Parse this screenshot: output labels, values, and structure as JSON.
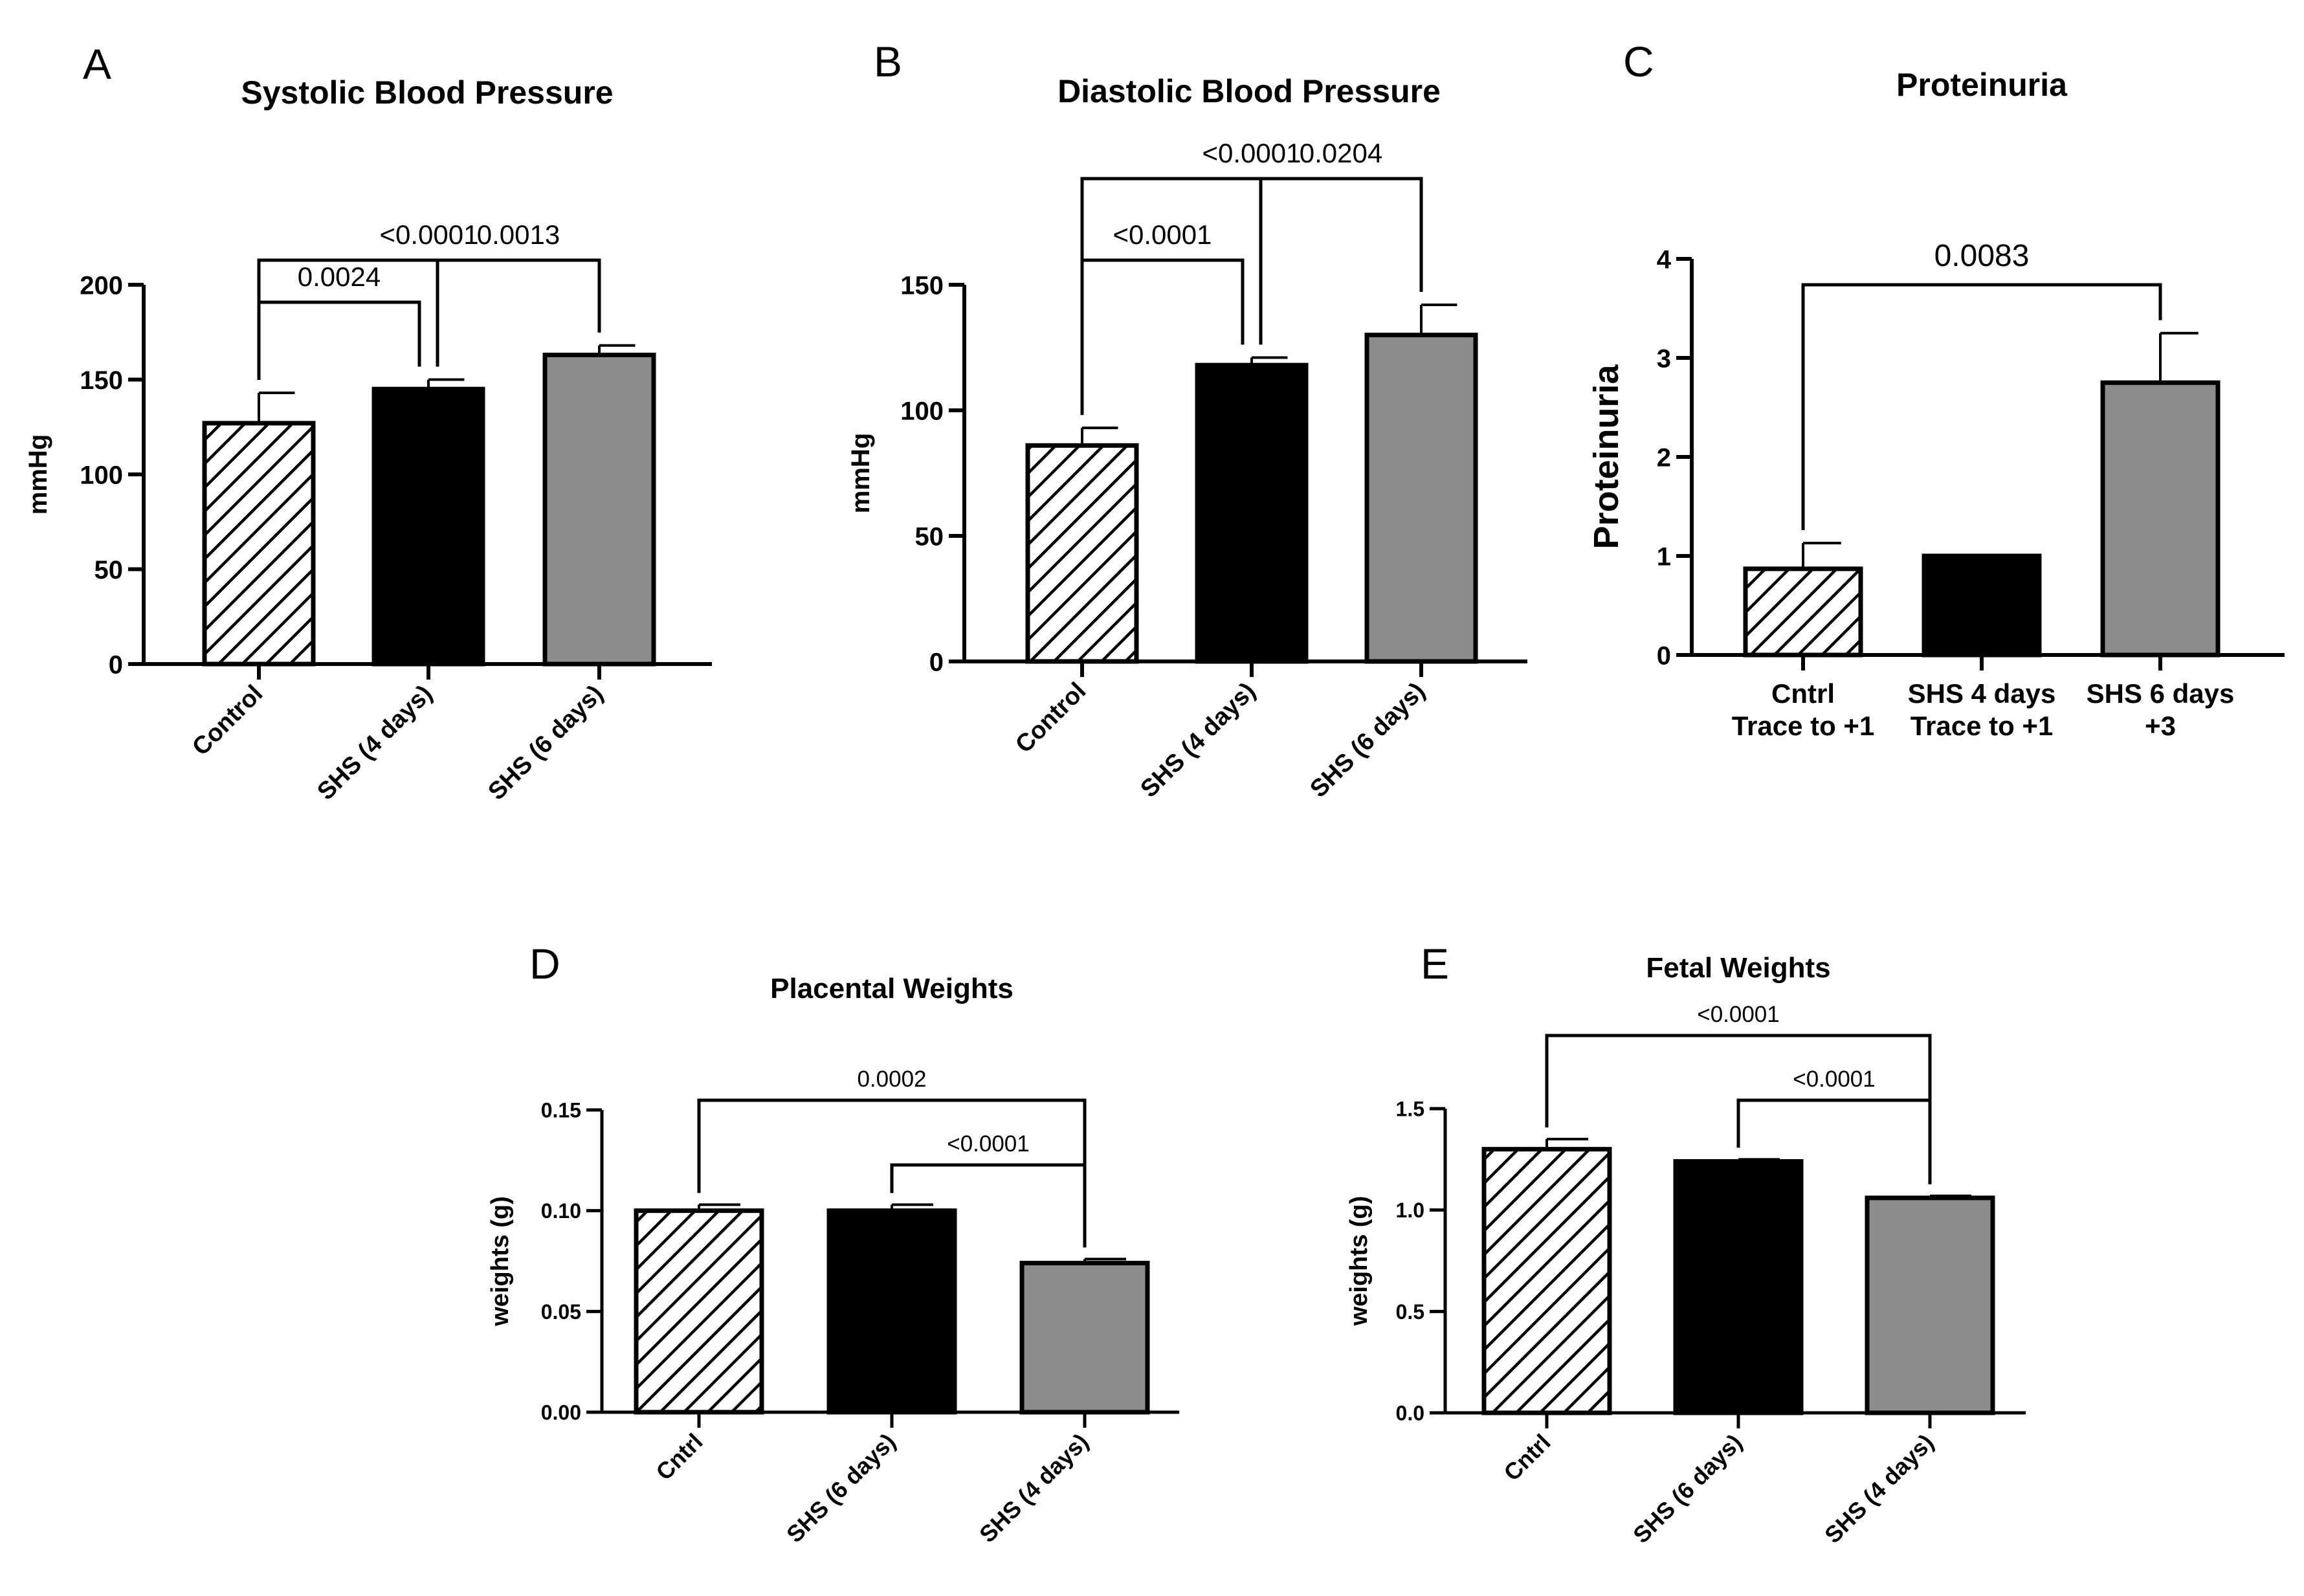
{
  "figure": {
    "colors": {
      "black": "#000000",
      "gray": "#8c8c8c",
      "white": "#ffffff"
    },
    "charts": [
      {
        "id": "A",
        "panel": "A"
      },
      {
        "id": "B",
        "panel": "B"
      },
      {
        "id": "C",
        "panel": "C"
      },
      {
        "id": "D",
        "panel": "D"
      },
      {
        "id": "E",
        "panel": "E"
      }
    ]
  },
  "chart_data": [
    {
      "type": "bar",
      "panel": "A",
      "title": "Systolic Blood Pressure",
      "xlabel": "",
      "ylabel": "mmHg",
      "ylim": [
        0,
        200
      ],
      "yticks": [
        0,
        50,
        100,
        150,
        200
      ],
      "ytick_labels": [
        "0",
        "50",
        "100",
        "150",
        "200"
      ],
      "categories": [
        "Control",
        "SHS (4 days)",
        "SHS (6 days)"
      ],
      "values": [
        127,
        145,
        163
      ],
      "errors": [
        16,
        5,
        5
      ],
      "fills": [
        "hatch",
        "black",
        "gray"
      ],
      "comparisons": [
        {
          "from": 0,
          "to": 1,
          "label": "0.0024"
        },
        {
          "from": 1,
          "to": 2,
          "label": "0.0013"
        },
        {
          "from": 0,
          "to": 2,
          "label": "<0.0001"
        }
      ]
    },
    {
      "type": "bar",
      "panel": "B",
      "title": "Diastolic Blood Pressure",
      "xlabel": "",
      "ylabel": "mmHg",
      "ylim": [
        0,
        150
      ],
      "yticks": [
        0,
        50,
        100,
        150
      ],
      "ytick_labels": [
        "0",
        "50",
        "100",
        "150"
      ],
      "categories": [
        "Control",
        "SHS (4 days)",
        "SHS (6 days)"
      ],
      "values": [
        86,
        118,
        130
      ],
      "errors": [
        7,
        3,
        12
      ],
      "fills": [
        "hatch",
        "black",
        "gray"
      ],
      "comparisons": [
        {
          "from": 0,
          "to": 1,
          "label": "<0.0001"
        },
        {
          "from": 1,
          "to": 2,
          "label": "0.0204"
        },
        {
          "from": 0,
          "to": 2,
          "label": "<0.0001"
        }
      ]
    },
    {
      "type": "bar",
      "panel": "C",
      "title": "Proteinuria",
      "xlabel": "",
      "ylabel": "Proteinuria",
      "ylim": [
        0,
        4
      ],
      "yticks": [
        0,
        1,
        2,
        3,
        4
      ],
      "ytick_labels": [
        "0",
        "1",
        "2",
        "3",
        "4"
      ],
      "categories": [
        "Cntrl\nTrace to +1",
        "SHS 4 days\nTrace to +1",
        "SHS 6 days\n+3"
      ],
      "values": [
        0.87,
        1.0,
        2.75
      ],
      "errors": [
        0.26,
        0,
        0.5
      ],
      "fills": [
        "hatch",
        "black",
        "gray"
      ],
      "comparisons": [
        {
          "from": 0,
          "to": 2,
          "label": "0.0083"
        }
      ]
    },
    {
      "type": "bar",
      "panel": "D",
      "title": "Placental Weights",
      "xlabel": "",
      "ylabel": "weights (g)",
      "ylim": [
        0,
        0.15
      ],
      "yticks": [
        0,
        0.05,
        0.1,
        0.15
      ],
      "ytick_labels": [
        "0.00",
        "0.05",
        "0.10",
        "0.15"
      ],
      "categories": [
        "Cntrl",
        "SHS (6 days)",
        "SHS (4 days)"
      ],
      "values": [
        0.1,
        0.1,
        0.074
      ],
      "errors": [
        0.003,
        0.003,
        0.002
      ],
      "fills": [
        "hatch",
        "black",
        "gray"
      ],
      "comparisons": [
        {
          "from": 1,
          "to": 2,
          "label": "<0.0001"
        },
        {
          "from": 0,
          "to": 2,
          "label": "0.0002"
        }
      ]
    },
    {
      "type": "bar",
      "panel": "E",
      "title": "Fetal Weights",
      "xlabel": "",
      "ylabel": "weights (g)",
      "ylim": [
        0,
        1.5
      ],
      "yticks": [
        0,
        0.5,
        1.0,
        1.5
      ],
      "ytick_labels": [
        "0.0",
        "0.5",
        "1.0",
        "1.5"
      ],
      "categories": [
        "Cntrl",
        "SHS (6 days)",
        "SHS (4 days)"
      ],
      "values": [
        1.3,
        1.24,
        1.06
      ],
      "errors": [
        0.05,
        0.01,
        0.01
      ],
      "fills": [
        "hatch",
        "black",
        "gray"
      ],
      "comparisons": [
        {
          "from": 1,
          "to": 2,
          "label": "<0.0001"
        },
        {
          "from": 0,
          "to": 2,
          "label": "<0.0001"
        }
      ]
    }
  ]
}
